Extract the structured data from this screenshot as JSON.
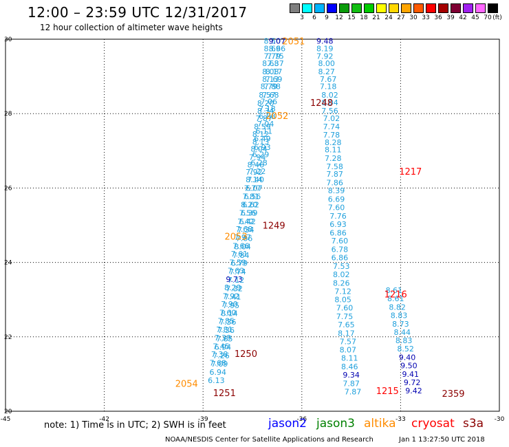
{
  "title": "12:00 – 23:59 UTC 12/31/2017",
  "subtitle": "12 hour collection of altimeter wave heights",
  "note": "note: 1) Time is in UTC; 2) SWH is in feet",
  "credit": "NOAA/NESDIS Center for Satellite Applications and Research",
  "timestamp": "Jan  1 13:27:50 UTC 2018",
  "color_scale": {
    "unit": "(ft)",
    "labels": [
      "3",
      "6",
      "9",
      "12",
      "15",
      "18",
      "21",
      "24",
      "27",
      "30",
      "33",
      "36",
      "39",
      "42",
      "45",
      "70"
    ],
    "colors": [
      "#7f7f7f",
      "#00ffff",
      "#00b4ff",
      "#0000ff",
      "#0a9b0a",
      "#12be12",
      "#00cc00",
      "#ffff00",
      "#ffd700",
      "#ffa500",
      "#ff5a00",
      "#ff0000",
      "#a50000",
      "#7f0033",
      "#a020f0",
      "#ff66ff",
      "#000000"
    ]
  },
  "legend": [
    {
      "name": "jason2",
      "color": "#0000ff"
    },
    {
      "name": "jason3",
      "color": "#008000"
    },
    {
      "name": "altika",
      "color": "#ff8c00"
    },
    {
      "name": "cryosat",
      "color": "#ff0000"
    },
    {
      "name": "s3a",
      "color": "#8b0000"
    }
  ],
  "chart_data": {
    "type": "scatter",
    "xlim": [
      -45,
      -30
    ],
    "ylim": [
      20,
      30
    ],
    "x_ticks": [
      "-45",
      "-42",
      "-39",
      "-36",
      "-33",
      "-30"
    ],
    "y_ticks": [
      "20",
      "22",
      "24",
      "26",
      "28",
      "30"
    ],
    "grid": true,
    "value_color": "#1fa0dc",
    "high_value_color": "#0000b0",
    "points": [
      {
        "x": -36.9,
        "y": 29.95,
        "t": "8.50"
      },
      {
        "x": -36.9,
        "y": 29.75,
        "t": "8.69"
      },
      {
        "x": -36.9,
        "y": 29.55,
        "t": "7.79"
      },
      {
        "x": -36.95,
        "y": 29.35,
        "t": "8.68"
      },
      {
        "x": -36.95,
        "y": 29.13,
        "t": "8.08"
      },
      {
        "x": -36.95,
        "y": 28.93,
        "t": "8.13"
      },
      {
        "x": -37.0,
        "y": 28.73,
        "t": "8.79"
      },
      {
        "x": -37.05,
        "y": 28.5,
        "t": "8.57"
      },
      {
        "x": -37.1,
        "y": 28.28,
        "t": "8.20"
      },
      {
        "x": -37.1,
        "y": 28.08,
        "t": "8.34"
      },
      {
        "x": -37.15,
        "y": 27.87,
        "t": "7.87"
      },
      {
        "x": -37.2,
        "y": 27.65,
        "t": "8.59"
      },
      {
        "x": -37.25,
        "y": 27.45,
        "t": "8.12"
      },
      {
        "x": -37.25,
        "y": 27.25,
        "t": "8.13"
      },
      {
        "x": -37.3,
        "y": 27.05,
        "t": "8.04"
      },
      {
        "x": -37.35,
        "y": 26.83,
        "t": "7.94"
      },
      {
        "x": -37.4,
        "y": 26.63,
        "t": "8.46"
      },
      {
        "x": -37.45,
        "y": 26.43,
        "t": "7.92"
      },
      {
        "x": -37.45,
        "y": 26.23,
        "t": "8.14"
      },
      {
        "x": -37.5,
        "y": 26.0,
        "t": "7.77"
      },
      {
        "x": -37.55,
        "y": 25.78,
        "t": "7.81"
      },
      {
        "x": -37.6,
        "y": 25.55,
        "t": "8.20"
      },
      {
        "x": -37.65,
        "y": 25.33,
        "t": "7.56"
      },
      {
        "x": -37.7,
        "y": 25.1,
        "t": "7.42"
      },
      {
        "x": -37.75,
        "y": 24.9,
        "t": "7.68"
      },
      {
        "x": -37.8,
        "y": 24.68,
        "t": "7.97"
      },
      {
        "x": -37.85,
        "y": 24.45,
        "t": "7.66"
      },
      {
        "x": -37.9,
        "y": 24.23,
        "t": "7.61"
      },
      {
        "x": -37.95,
        "y": 24.0,
        "t": "7.59"
      },
      {
        "x": -38.0,
        "y": 23.78,
        "t": "7.63"
      },
      {
        "x": -38.05,
        "y": 23.55,
        "t": "9.73"
      },
      {
        "x": -38.1,
        "y": 23.33,
        "t": "8.29"
      },
      {
        "x": -38.15,
        "y": 23.1,
        "t": "7.92"
      },
      {
        "x": -38.2,
        "y": 22.88,
        "t": "7.90"
      },
      {
        "x": -38.25,
        "y": 22.65,
        "t": "7.60"
      },
      {
        "x": -38.3,
        "y": 22.43,
        "t": "7.85"
      },
      {
        "x": -38.35,
        "y": 22.2,
        "t": "7.81"
      },
      {
        "x": -38.4,
        "y": 21.98,
        "t": "7.39"
      },
      {
        "x": -38.45,
        "y": 21.75,
        "t": "7.45"
      },
      {
        "x": -38.5,
        "y": 21.53,
        "t": "7.38"
      },
      {
        "x": -38.55,
        "y": 21.3,
        "t": "7.68"
      },
      {
        "x": -36.75,
        "y": 29.95,
        "t": "9.07"
      },
      {
        "x": -36.75,
        "y": 29.75,
        "t": "8.66"
      },
      {
        "x": -36.8,
        "y": 29.55,
        "t": "7.75"
      },
      {
        "x": -36.8,
        "y": 29.35,
        "t": "7.37"
      },
      {
        "x": -36.85,
        "y": 29.13,
        "t": "8.17"
      },
      {
        "x": -36.85,
        "y": 28.93,
        "t": "7.69"
      },
      {
        "x": -36.9,
        "y": 28.73,
        "t": "7.88"
      },
      {
        "x": -36.95,
        "y": 28.5,
        "t": "7.68"
      },
      {
        "x": -37.0,
        "y": 28.33,
        "t": "7.06"
      },
      {
        "x": -37.05,
        "y": 28.13,
        "t": "7.18"
      },
      {
        "x": -37.05,
        "y": 27.93,
        "t": "6.88"
      },
      {
        "x": -37.1,
        "y": 27.73,
        "t": "7.04"
      },
      {
        "x": -37.15,
        "y": 27.53,
        "t": "6.11"
      },
      {
        "x": -37.2,
        "y": 27.33,
        "t": "6.49"
      },
      {
        "x": -37.2,
        "y": 27.1,
        "t": "6.93"
      },
      {
        "x": -37.25,
        "y": 26.9,
        "t": "6.29"
      },
      {
        "x": -37.3,
        "y": 26.68,
        "t": "6.28"
      },
      {
        "x": -37.35,
        "y": 26.45,
        "t": "7.22"
      },
      {
        "x": -37.4,
        "y": 26.23,
        "t": "7.40"
      },
      {
        "x": -37.45,
        "y": 26.0,
        "t": "6.07"
      },
      {
        "x": -37.5,
        "y": 25.78,
        "t": "6.56"
      },
      {
        "x": -37.55,
        "y": 25.55,
        "t": "6.62"
      },
      {
        "x": -37.6,
        "y": 25.33,
        "t": "6.39"
      },
      {
        "x": -37.65,
        "y": 25.1,
        "t": "6.42"
      },
      {
        "x": -37.7,
        "y": 24.88,
        "t": "7.34"
      },
      {
        "x": -37.75,
        "y": 24.65,
        "t": "7.06"
      },
      {
        "x": -37.8,
        "y": 24.43,
        "t": "8.04"
      },
      {
        "x": -37.85,
        "y": 24.2,
        "t": "7.84"
      },
      {
        "x": -37.9,
        "y": 23.98,
        "t": "6.79"
      },
      {
        "x": -37.95,
        "y": 23.75,
        "t": "7.74"
      },
      {
        "x": -38.0,
        "y": 23.53,
        "t": "7.12"
      },
      {
        "x": -38.05,
        "y": 23.3,
        "t": "7.32"
      },
      {
        "x": -38.1,
        "y": 23.08,
        "t": "7.41"
      },
      {
        "x": -38.15,
        "y": 22.85,
        "t": "7.95"
      },
      {
        "x": -38.2,
        "y": 22.63,
        "t": "8.14"
      },
      {
        "x": -38.25,
        "y": 22.4,
        "t": "7.36"
      },
      {
        "x": -38.3,
        "y": 22.18,
        "t": "7.36"
      },
      {
        "x": -38.35,
        "y": 21.95,
        "t": "7.65"
      },
      {
        "x": -38.4,
        "y": 21.73,
        "t": "6.94"
      },
      {
        "x": -38.45,
        "y": 21.5,
        "t": "7.26"
      },
      {
        "x": -38.5,
        "y": 21.28,
        "t": "7.09"
      },
      {
        "x": -38.55,
        "y": 21.05,
        "t": "6.94"
      },
      {
        "x": -38.6,
        "y": 20.83,
        "t": "6.13"
      },
      {
        "x": -35.3,
        "y": 29.95,
        "t": "9.48"
      },
      {
        "x": -35.3,
        "y": 29.75,
        "t": "8.19"
      },
      {
        "x": -35.3,
        "y": 29.55,
        "t": "7.92"
      },
      {
        "x": -35.25,
        "y": 29.35,
        "t": "8.00"
      },
      {
        "x": -35.25,
        "y": 29.13,
        "t": "8.27"
      },
      {
        "x": -35.2,
        "y": 28.93,
        "t": "7.67"
      },
      {
        "x": -35.2,
        "y": 28.73,
        "t": "7.18"
      },
      {
        "x": -35.15,
        "y": 28.5,
        "t": "8.02"
      },
      {
        "x": -35.15,
        "y": 28.3,
        "t": "8.04"
      },
      {
        "x": -35.15,
        "y": 28.08,
        "t": "7.56"
      },
      {
        "x": -35.1,
        "y": 27.87,
        "t": "7.02"
      },
      {
        "x": -35.1,
        "y": 27.65,
        "t": "7.74"
      },
      {
        "x": -35.1,
        "y": 27.43,
        "t": "7.78"
      },
      {
        "x": -35.05,
        "y": 27.23,
        "t": "8.28"
      },
      {
        "x": -35.05,
        "y": 27.03,
        "t": "8.11"
      },
      {
        "x": -35.05,
        "y": 26.8,
        "t": "7.28"
      },
      {
        "x": -35.0,
        "y": 26.58,
        "t": "7.58"
      },
      {
        "x": -35.0,
        "y": 26.38,
        "t": "7.87"
      },
      {
        "x": -35.0,
        "y": 26.15,
        "t": "7.86"
      },
      {
        "x": -34.95,
        "y": 25.93,
        "t": "8.39"
      },
      {
        "x": -34.95,
        "y": 25.7,
        "t": "6.69"
      },
      {
        "x": -34.95,
        "y": 25.48,
        "t": "7.60"
      },
      {
        "x": -34.9,
        "y": 25.25,
        "t": "7.76"
      },
      {
        "x": -34.9,
        "y": 25.03,
        "t": "6.93"
      },
      {
        "x": -34.9,
        "y": 24.8,
        "t": "6.86"
      },
      {
        "x": -34.85,
        "y": 24.58,
        "t": "7.60"
      },
      {
        "x": -34.85,
        "y": 24.35,
        "t": "6.78"
      },
      {
        "x": -34.85,
        "y": 24.13,
        "t": "6.86"
      },
      {
        "x": -34.8,
        "y": 23.9,
        "t": "7.53"
      },
      {
        "x": -34.8,
        "y": 23.68,
        "t": "8.02"
      },
      {
        "x": -34.8,
        "y": 23.45,
        "t": "8.26"
      },
      {
        "x": -34.75,
        "y": 23.23,
        "t": "7.12"
      },
      {
        "x": -34.75,
        "y": 23.0,
        "t": "8.05"
      },
      {
        "x": -34.7,
        "y": 22.78,
        "t": "7.60"
      },
      {
        "x": -34.7,
        "y": 22.55,
        "t": "7.75"
      },
      {
        "x": -34.65,
        "y": 22.33,
        "t": "7.65"
      },
      {
        "x": -34.65,
        "y": 22.1,
        "t": "8.17"
      },
      {
        "x": -34.6,
        "y": 21.88,
        "t": "7.57"
      },
      {
        "x": -34.6,
        "y": 21.65,
        "t": "8.07"
      },
      {
        "x": -34.55,
        "y": 21.43,
        "t": "8.11"
      },
      {
        "x": -34.55,
        "y": 21.2,
        "t": "8.46"
      },
      {
        "x": -34.5,
        "y": 20.98,
        "t": "9.34"
      },
      {
        "x": -34.5,
        "y": 20.75,
        "t": "7.87"
      },
      {
        "x": -34.45,
        "y": 20.53,
        "t": "7.87"
      },
      {
        "x": -33.2,
        "y": 23.25,
        "t": "8.61"
      },
      {
        "x": -33.15,
        "y": 23.03,
        "t": "8.61"
      },
      {
        "x": -33.1,
        "y": 22.8,
        "t": "8.82"
      },
      {
        "x": -33.05,
        "y": 22.58,
        "t": "8.83"
      },
      {
        "x": -33.0,
        "y": 22.35,
        "t": "8.73"
      },
      {
        "x": -32.95,
        "y": 22.13,
        "t": "8.44"
      },
      {
        "x": -32.9,
        "y": 21.9,
        "t": "8.83"
      },
      {
        "x": -32.85,
        "y": 21.68,
        "t": "8.52"
      },
      {
        "x": -32.8,
        "y": 21.45,
        "t": "9.40"
      },
      {
        "x": -32.75,
        "y": 21.23,
        "t": "9.50"
      },
      {
        "x": -32.7,
        "y": 21.0,
        "t": "9.41"
      },
      {
        "x": -32.65,
        "y": 20.78,
        "t": "9.72"
      },
      {
        "x": -32.6,
        "y": 20.55,
        "t": "9.42"
      }
    ],
    "time_labels": [
      {
        "x": -36.25,
        "y": 29.95,
        "t": "2051",
        "sat": "altika"
      },
      {
        "x": -36.75,
        "y": 27.95,
        "t": "2052",
        "sat": "altika"
      },
      {
        "x": -38.0,
        "y": 24.7,
        "t": "2053",
        "sat": "altika"
      },
      {
        "x": -39.5,
        "y": 20.75,
        "t": "2054",
        "sat": "altika"
      },
      {
        "x": -35.4,
        "y": 28.3,
        "t": "1248",
        "sat": "s3a"
      },
      {
        "x": -36.85,
        "y": 25.0,
        "t": "1249",
        "sat": "s3a"
      },
      {
        "x": -37.7,
        "y": 21.55,
        "t": "1250",
        "sat": "s3a"
      },
      {
        "x": -38.35,
        "y": 20.5,
        "t": "1251",
        "sat": "s3a"
      },
      {
        "x": -32.7,
        "y": 26.45,
        "t": "1217",
        "sat": "cryosat"
      },
      {
        "x": -33.15,
        "y": 23.15,
        "t": "1216",
        "sat": "cryosat"
      },
      {
        "x": -33.4,
        "y": 20.55,
        "t": "1215",
        "sat": "cryosat"
      },
      {
        "x": -31.4,
        "y": 20.48,
        "t": "2359",
        "sat": "s3a"
      }
    ]
  }
}
